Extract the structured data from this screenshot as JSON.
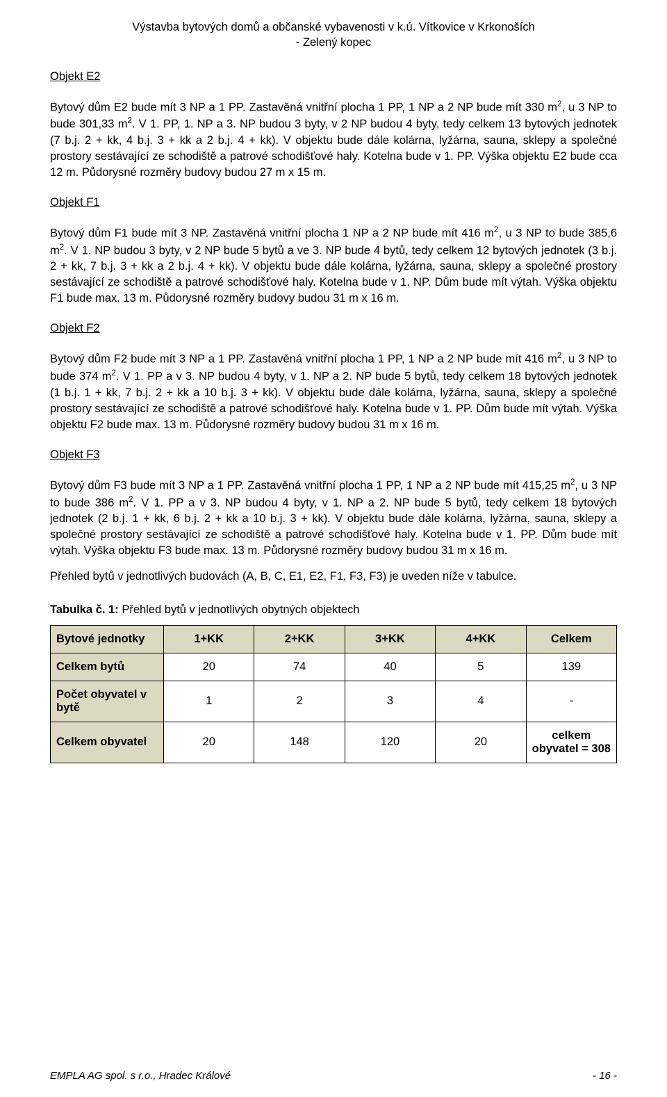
{
  "header": {
    "line1": "Výstavba bytových domů a občanské vybavenosti v k.ú. Vítkovice v Krkonoších",
    "line2": "- Zelený kopec"
  },
  "sections": [
    {
      "heading": "Objekt E2",
      "body_html": "Bytový dům E2 bude mít 3 NP a 1 PP. Zastavěná vnitřní plocha 1 PP, 1 NP a 2 NP bude mít 330 m<sup>2</sup>, u 3 NP to bude 301,33 m<sup>2</sup>. V 1. PP, 1. NP a 3. NP budou 3 byty, v 2 NP budou 4 byty, tedy celkem 13 bytových jednotek (7 b.j. 2 + kk, 4 b.j. 3 + kk a 2 b.j. 4 + kk). V objektu bude dále kolárna, lyžárna, sauna, sklepy a společné prostory sestávající ze schodiště a patrové schodišťové haly. Kotelna bude v 1. PP. Výška objektu E2 bude cca 12 m. Půdorysné rozměry budovy budou 27 m x 15 m."
    },
    {
      "heading": "Objekt F1",
      "body_html": "Bytový dům F1 bude mít 3 NP. Zastavěná vnitřní plocha 1 NP a 2 NP bude mít 416 m<sup>2</sup>, u 3 NP to bude 385,6 m<sup>2</sup>. V 1. NP budou 3 byty, v 2 NP bude 5 bytů a ve 3. NP bude 4 bytů, tedy celkem 12 bytových jednotek (3 b.j. 2 + kk, 7 b.j. 3 + kk a 2 b.j. 4 + kk). V objektu bude dále kolárna, lyžárna, sauna, sklepy a společné prostory sestávající ze schodiště a patrové schodišťové haly. Kotelna bude v 1. NP. Dům bude mít výtah. Výška objektu F1 bude max. 13 m. Půdorysné rozměry budovy budou 31 m x 16 m."
    },
    {
      "heading": "Objekt F2",
      "body_html": "Bytový dům F2 bude mít 3 NP a 1 PP. Zastavěná vnitřní plocha 1 PP, 1 NP a 2 NP bude mít 416 m<sup>2</sup>, u 3 NP to bude 374 m<sup>2</sup>. V 1. PP a v 3. NP budou 4 byty, v 1. NP a 2. NP bude 5 bytů, tedy celkem 18 bytových jednotek (1 b.j. 1 + kk, 7 b.j. 2 + kk a 10 b.j. 3 + kk). V objektu bude dále kolárna, lyžárna, sauna, sklepy a společné prostory sestávající ze schodiště a patrové schodišťové haly. Kotelna bude v 1. PP. Dům bude mít výtah. Výška objektu F2 bude max. 13 m. Půdorysné rozměry budovy budou 31 m x 16 m."
    },
    {
      "heading": "Objekt F3",
      "body_html": "Bytový dům F3 bude mít 3 NP a 1 PP. Zastavěná vnitřní plocha 1 PP, 1 NP a 2 NP bude mít 415,25 m<sup>2</sup>, u 3 NP to bude 386 m<sup>2</sup>. V 1. PP a v 3. NP budou 4 byty, v 1. NP a 2. NP bude 5 bytů, tedy celkem 18 bytových jednotek (2 b.j. 1 + kk, 6 b.j. 2 + kk a 10 b.j. 3 + kk). V objektu bude dále kolárna, lyžárna, sauna, sklepy a společné prostory sestávající ze schodiště a patrové schodišťové haly. Kotelna bude v 1. PP. Dům bude mít výtah. Výška objektu F3 bude max. 13 m. Půdorysné rozměry budovy budou 31 m x 16 m."
    }
  ],
  "summary_line": "Přehled bytů v jednotlivých budovách (A, B, C, E1, E2, F1, F3, F3) je uveden níže v tabulce.",
  "table": {
    "caption_bold": "Tabulka č. 1:",
    "caption_rest": " Přehled bytů v jednotlivých obytných objektech",
    "header_row": [
      "Bytové jednotky",
      "1+KK",
      "2+KK",
      "3+KK",
      "4+KK",
      "Celkem"
    ],
    "rows": [
      {
        "label": "Celkem bytů",
        "cells": [
          "20",
          "74",
          "40",
          "5",
          "139"
        ]
      },
      {
        "label": "Počet obyvatel v bytě",
        "cells": [
          "1",
          "2",
          "3",
          "4",
          "-"
        ]
      },
      {
        "label": "Celkem obyvatel",
        "cells": [
          "20",
          "148",
          "120",
          "20",
          "celkem obyvatel = 308"
        ]
      }
    ]
  },
  "footer": {
    "left": "EMPLA AG spol. s r.o.,   Hradec Králové",
    "right": "- 16 -"
  },
  "colors": {
    "table_header_bg": "#dcd9c2",
    "text": "#000000",
    "page_bg": "#ffffff"
  }
}
